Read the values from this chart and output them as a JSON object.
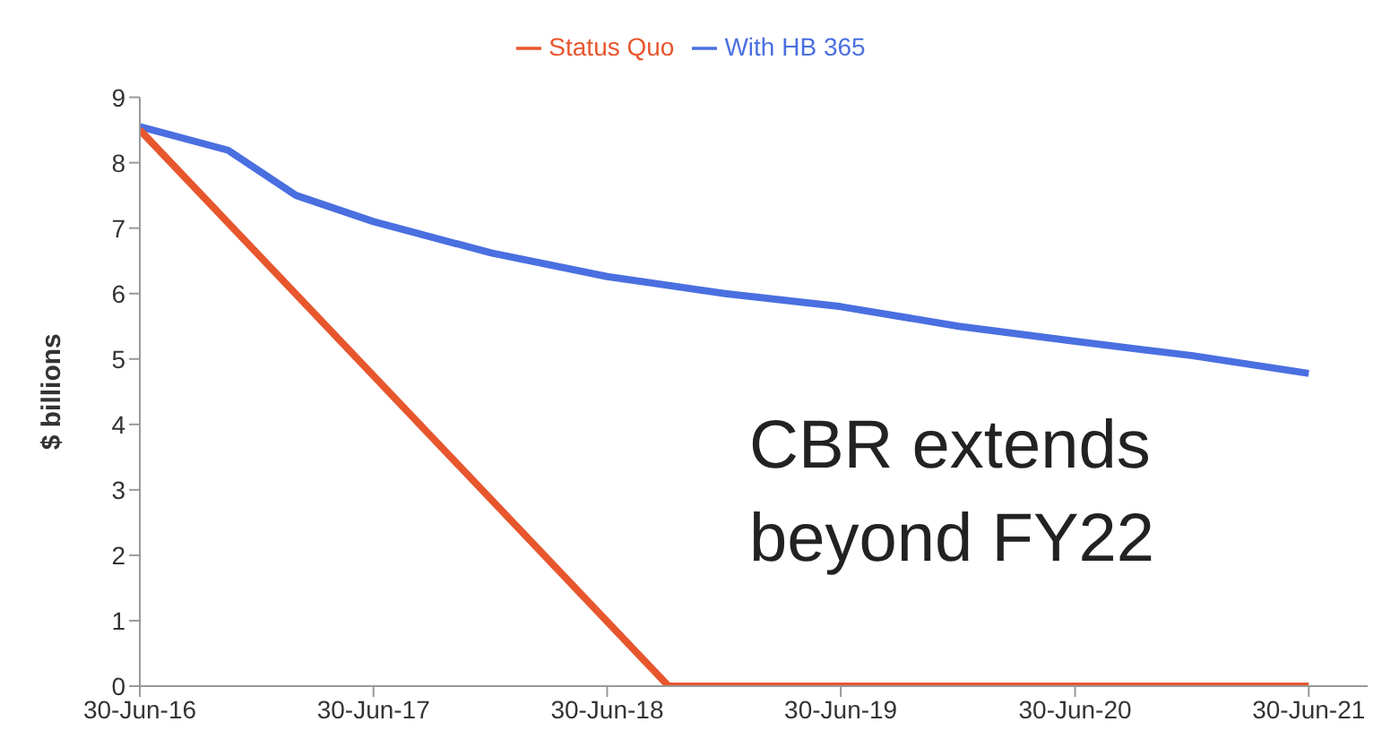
{
  "chart_data": {
    "type": "line",
    "ylabel": "$ billions",
    "legend": "top",
    "grid": false,
    "marker": "none",
    "line_style": "solid",
    "xlim": [
      "2016-06-30",
      "2021-09-30"
    ],
    "xticks": [
      {
        "value": "2016-06-30",
        "label": "30-Jun-16"
      },
      {
        "value": "2017-06-30",
        "label": "30-Jun-17"
      },
      {
        "value": "2018-06-30",
        "label": "30-Jun-18"
      },
      {
        "value": "2019-06-30",
        "label": "30-Jun-19"
      },
      {
        "value": "2020-06-30",
        "label": "30-Jun-20"
      },
      {
        "value": "2021-06-30",
        "label": "30-Jun-21"
      }
    ],
    "ylim": [
      0,
      9
    ],
    "yticks": [
      0,
      1,
      2,
      3,
      4,
      5,
      6,
      7,
      8,
      9
    ],
    "series": [
      {
        "name": "With HB 365",
        "color": "#4a6fe0",
        "x": [
          "2016-06-30",
          "2016-11-15",
          "2017-03-01",
          "2017-06-30",
          "2017-12-31",
          "2018-06-30",
          "2018-12-31",
          "2019-06-30",
          "2019-12-31",
          "2020-06-30",
          "2020-12-31",
          "2021-06-30"
        ],
        "values": [
          8.55,
          8.19,
          7.5,
          7.1,
          6.62,
          6.26,
          6.0,
          5.8,
          5.5,
          5.27,
          5.05,
          4.78
        ]
      },
      {
        "name": "Status Quo",
        "color": "#e8562e",
        "x": [
          "2016-06-30",
          "2018-10-04",
          "2021-06-30"
        ],
        "values": [
          8.5,
          0,
          0
        ]
      }
    ],
    "annotations": [
      "CBR extends\nbeyond FY22"
    ]
  }
}
